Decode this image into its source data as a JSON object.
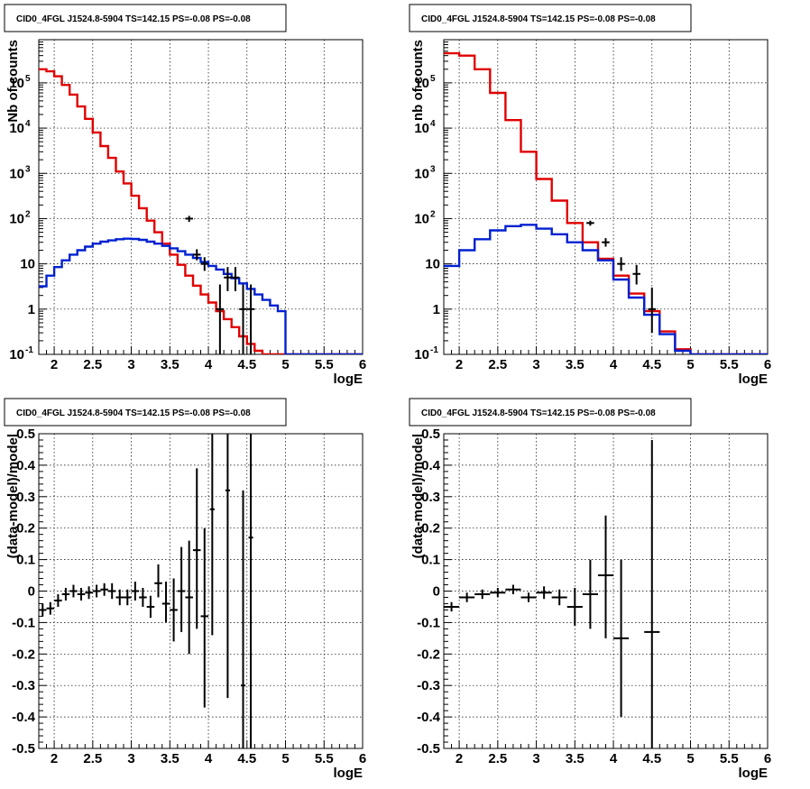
{
  "figure_title": "CID0_4FGL J1524.8-5904 TS=142.15 PS=-0.08 PS=-0.08",
  "chart_data": [
    {
      "id": "panel-top-left",
      "type": "line",
      "title": "CID0_4FGL J1524.8-5904 TS=142.15 PS=-0.08 PS=-0.08",
      "xlabel": "logE",
      "ylabel": "Nb of counts",
      "xlim": [
        1.8,
        6
      ],
      "ylim": [
        0.1,
        900000
      ],
      "yscale": "log",
      "grid": true,
      "xticks": [
        {
          "v": 2,
          "label": "2"
        },
        {
          "v": 2.5,
          "label": "2.5"
        },
        {
          "v": 3,
          "label": "3"
        },
        {
          "v": 3.5,
          "label": "3.5"
        },
        {
          "v": 4,
          "label": "4"
        },
        {
          "v": 4.5,
          "label": "4.5"
        },
        {
          "v": 5,
          "label": "5"
        },
        {
          "v": 5.5,
          "label": "5.5"
        },
        {
          "v": 6,
          "label": "6"
        }
      ],
      "yticks": [
        {
          "v": 0.1,
          "base": "10",
          "exp": "-1"
        },
        {
          "v": 1,
          "base": "1"
        },
        {
          "v": 10,
          "base": "10"
        },
        {
          "v": 100,
          "base": "10",
          "exp": "2"
        },
        {
          "v": 1000,
          "base": "10",
          "exp": "3"
        },
        {
          "v": 10000,
          "base": "10",
          "exp": "4"
        },
        {
          "v": 100000,
          "base": "10",
          "exp": "5"
        }
      ],
      "bin_edges": [
        1.8,
        1.9,
        2.0,
        2.1,
        2.2,
        2.3,
        2.4,
        2.5,
        2.6,
        2.7,
        2.8,
        2.9,
        3.0,
        3.1,
        3.2,
        3.3,
        3.4,
        3.5,
        3.6,
        3.7,
        3.8,
        3.9,
        4.0,
        4.1,
        4.2,
        4.3,
        4.4,
        4.5,
        4.6,
        4.7,
        4.8,
        4.9,
        5.0,
        5.1,
        5.2,
        5.3,
        5.4,
        5.5,
        5.6,
        5.7,
        5.8,
        5.9,
        6.0
      ],
      "series": [
        {
          "kind": "step",
          "color": "#e00000",
          "values": [
            200000,
            180000,
            140000,
            90000,
            55000,
            30000,
            16000,
            8000,
            4000,
            2200,
            1100,
            600,
            320,
            170,
            90,
            50,
            28,
            16,
            9.5,
            5.5,
            3.3,
            2.1,
            1.4,
            0.9,
            0.6,
            0.4,
            0.25,
            0.17,
            0.12,
            0.1,
            0.1,
            0.1,
            0.1,
            0.1,
            0.1,
            0.1,
            0.1,
            0.1,
            0.1,
            0.1,
            0.1,
            0.1
          ]
        },
        {
          "kind": "step",
          "color": "#0020d0",
          "values": [
            3.2,
            5.5,
            8.5,
            12,
            16,
            20,
            24,
            28,
            31,
            33,
            35,
            36,
            35.5,
            34,
            31,
            28,
            25,
            22,
            19,
            16,
            13.5,
            11,
            9,
            7.5,
            6,
            4.8,
            3.7,
            2.8,
            2.1,
            1.6,
            1.2,
            0.9,
            0.1,
            0.1,
            0.1,
            0.1,
            0.1,
            0.1,
            0.1,
            0.1,
            0.1,
            0.1
          ]
        }
      ],
      "points": [
        {
          "x": 3.75,
          "y": 100,
          "ylo": 85,
          "yhi": 115
        },
        {
          "x": 3.85,
          "y": 16,
          "ylo": 12,
          "yhi": 21
        },
        {
          "x": 3.95,
          "y": 10,
          "ylo": 7,
          "yhi": 14
        },
        {
          "x": 4.15,
          "y": 1,
          "ylo": 0.1,
          "yhi": 3.5
        },
        {
          "x": 4.25,
          "y": 5,
          "ylo": 2.5,
          "yhi": 8.5
        },
        {
          "x": 4.35,
          "y": 5,
          "ylo": 2.5,
          "yhi": 8.5
        },
        {
          "x": 4.45,
          "y": 1,
          "ylo": 0.1,
          "yhi": 3.5
        },
        {
          "x": 4.55,
          "y": 1,
          "ylo": 0.1,
          "yhi": 3.5
        }
      ]
    },
    {
      "id": "panel-top-right",
      "type": "line",
      "title": "CID0_4FGL J1524.8-5904 TS=142.15 PS=-0.08 PS=-0.08",
      "xlabel": "logE",
      "ylabel": "nb of counts",
      "xlim": [
        1.8,
        6
      ],
      "ylim": [
        0.1,
        900000
      ],
      "yscale": "log",
      "grid": true,
      "xticks": [
        {
          "v": 2,
          "label": "2"
        },
        {
          "v": 2.5,
          "label": "2.5"
        },
        {
          "v": 3,
          "label": "3"
        },
        {
          "v": 3.5,
          "label": "3.5"
        },
        {
          "v": 4,
          "label": "4"
        },
        {
          "v": 4.5,
          "label": "4.5"
        },
        {
          "v": 5,
          "label": "5"
        },
        {
          "v": 5.5,
          "label": "5.5"
        },
        {
          "v": 6,
          "label": "6"
        }
      ],
      "yticks": [
        {
          "v": 0.1,
          "base": "10",
          "exp": "-1"
        },
        {
          "v": 1,
          "base": "1"
        },
        {
          "v": 10,
          "base": "10"
        },
        {
          "v": 100,
          "base": "10",
          "exp": "2"
        },
        {
          "v": 1000,
          "base": "10",
          "exp": "3"
        },
        {
          "v": 10000,
          "base": "10",
          "exp": "4"
        },
        {
          "v": 100000,
          "base": "10",
          "exp": "5"
        }
      ],
      "bin_edges": [
        1.8,
        2.0,
        2.2,
        2.4,
        2.6,
        2.8,
        3.0,
        3.2,
        3.4,
        3.6,
        3.8,
        4.0,
        4.2,
        4.4,
        4.6,
        4.8,
        5.0,
        5.2,
        5.4,
        5.6,
        5.8,
        6.0
      ],
      "series": [
        {
          "kind": "step",
          "color": "#e00000",
          "values": [
            450000,
            400000,
            200000,
            60000,
            15000,
            3000,
            750,
            250,
            80,
            30,
            13,
            5.5,
            2.2,
            0.9,
            0.32,
            0.13,
            0.1,
            0.1,
            0.1,
            0.1,
            0.1
          ]
        },
        {
          "kind": "step",
          "color": "#0020d0",
          "values": [
            9,
            20,
            35,
            55,
            68,
            73,
            60,
            45,
            30,
            20,
            12,
            4.5,
            1.8,
            0.75,
            0.28,
            0.12,
            0.1,
            0.1,
            0.1,
            0.1,
            0.1
          ]
        }
      ],
      "points": [
        {
          "x": 3.7,
          "y": 80,
          "ylo": 70,
          "yhi": 90
        },
        {
          "x": 3.9,
          "y": 30,
          "ylo": 24,
          "yhi": 37
        },
        {
          "x": 4.1,
          "y": 10,
          "ylo": 7,
          "yhi": 14
        },
        {
          "x": 4.3,
          "y": 6,
          "ylo": 3.5,
          "yhi": 9.5
        },
        {
          "x": 4.5,
          "y": 1,
          "ylo": 0.3,
          "yhi": 3
        }
      ]
    },
    {
      "id": "panel-bottom-left",
      "type": "scatter",
      "title": "CID0_4FGL J1524.8-5904 TS=142.15 PS=-0.08 PS=-0.08",
      "xlabel": "logE",
      "ylabel": "(data-model)/model",
      "xlim": [
        1.8,
        6
      ],
      "ylim": [
        -0.5,
        0.5
      ],
      "yscale": "linear",
      "grid": true,
      "xticks": [
        {
          "v": 2,
          "label": "2"
        },
        {
          "v": 2.5,
          "label": "2.5"
        },
        {
          "v": 3,
          "label": "3"
        },
        {
          "v": 3.5,
          "label": "3.5"
        },
        {
          "v": 4,
          "label": "4"
        },
        {
          "v": 4.5,
          "label": "4.5"
        },
        {
          "v": 5,
          "label": "5"
        },
        {
          "v": 5.5,
          "label": "5.5"
        },
        {
          "v": 6,
          "label": "6"
        }
      ],
      "yticks": [
        {
          "v": -0.5,
          "label": "-0.5"
        },
        {
          "v": -0.4,
          "label": "-0.4"
        },
        {
          "v": -0.3,
          "label": "-0.3"
        },
        {
          "v": -0.2,
          "label": "-0.2"
        },
        {
          "v": -0.1,
          "label": "-0.1"
        },
        {
          "v": 0,
          "label": "0"
        },
        {
          "v": 0.1,
          "label": "0.1"
        },
        {
          "v": 0.2,
          "label": "0.2"
        },
        {
          "v": 0.3,
          "label": "0.3"
        },
        {
          "v": 0.4,
          "label": "0.4"
        },
        {
          "v": 0.5,
          "label": "0.5"
        }
      ],
      "points": [
        {
          "x": 1.85,
          "y": -0.06,
          "ylo": -0.08,
          "yhi": -0.04,
          "hw": 0.05
        },
        {
          "x": 1.95,
          "y": -0.055,
          "ylo": -0.075,
          "yhi": -0.035,
          "hw": 0.05
        },
        {
          "x": 2.05,
          "y": -0.03,
          "ylo": -0.05,
          "yhi": -0.01,
          "hw": 0.05
        },
        {
          "x": 2.15,
          "y": -0.01,
          "ylo": -0.03,
          "yhi": 0.01,
          "hw": 0.05
        },
        {
          "x": 2.25,
          "y": 0.0,
          "ylo": -0.02,
          "yhi": 0.02,
          "hw": 0.05
        },
        {
          "x": 2.35,
          "y": -0.01,
          "ylo": -0.03,
          "yhi": 0.01,
          "hw": 0.05
        },
        {
          "x": 2.45,
          "y": -0.005,
          "ylo": -0.025,
          "yhi": 0.015,
          "hw": 0.05
        },
        {
          "x": 2.55,
          "y": 0.0,
          "ylo": -0.02,
          "yhi": 0.02,
          "hw": 0.05
        },
        {
          "x": 2.65,
          "y": 0.005,
          "ylo": -0.015,
          "yhi": 0.025,
          "hw": 0.05
        },
        {
          "x": 2.75,
          "y": 0.0,
          "ylo": -0.025,
          "yhi": 0.025,
          "hw": 0.05
        },
        {
          "x": 2.85,
          "y": -0.02,
          "ylo": -0.045,
          "yhi": 0.005,
          "hw": 0.05
        },
        {
          "x": 2.95,
          "y": -0.02,
          "ylo": -0.045,
          "yhi": 0.005,
          "hw": 0.05
        },
        {
          "x": 3.05,
          "y": 0.0,
          "ylo": -0.03,
          "yhi": 0.03,
          "hw": 0.05
        },
        {
          "x": 3.15,
          "y": -0.02,
          "ylo": -0.05,
          "yhi": 0.01,
          "hw": 0.05
        },
        {
          "x": 3.25,
          "y": -0.05,
          "ylo": -0.085,
          "yhi": -0.015,
          "hw": 0.05
        },
        {
          "x": 3.35,
          "y": 0.025,
          "ylo": -0.02,
          "yhi": 0.085,
          "hw": 0.05
        },
        {
          "x": 3.45,
          "y": -0.04,
          "ylo": -0.1,
          "yhi": 0.03,
          "hw": 0.05
        },
        {
          "x": 3.55,
          "y": -0.06,
          "ylo": -0.16,
          "yhi": 0.04,
          "hw": 0.05
        },
        {
          "x": 3.65,
          "y": 0.0,
          "ylo": -0.13,
          "yhi": 0.14,
          "hw": 0.05
        },
        {
          "x": 3.75,
          "y": -0.02,
          "ylo": -0.2,
          "yhi": 0.16,
          "hw": 0.05
        },
        {
          "x": 3.85,
          "y": 0.13,
          "ylo": -0.12,
          "yhi": 0.39,
          "hw": 0.05
        },
        {
          "x": 3.95,
          "y": -0.08,
          "ylo": -0.37,
          "yhi": 0.2,
          "hw": 0.05
        },
        {
          "x": 4.05,
          "y": 0.26,
          "ylo": -0.14,
          "yhi": 0.5,
          "hw": 0.03
        },
        {
          "x": 4.25,
          "y": 0.32,
          "ylo": -0.34,
          "yhi": 0.5,
          "hw": 0.03
        },
        {
          "x": 4.45,
          "y": -0.3,
          "ylo": -0.5,
          "yhi": 0.32,
          "hw": 0.03
        },
        {
          "x": 4.55,
          "y": 0.17,
          "ylo": -0.5,
          "yhi": 0.5,
          "hw": 0.03
        }
      ]
    },
    {
      "id": "panel-bottom-right",
      "type": "scatter",
      "title": "CID0_4FGL J1524.8-5904 TS=142.15 PS=-0.08 PS=-0.08",
      "xlabel": "logE",
      "ylabel": "(data-model)/model",
      "xlim": [
        1.8,
        6
      ],
      "ylim": [
        -0.5,
        0.5
      ],
      "yscale": "linear",
      "grid": true,
      "xticks": [
        {
          "v": 2,
          "label": "2"
        },
        {
          "v": 2.5,
          "label": "2.5"
        },
        {
          "v": 3,
          "label": "3"
        },
        {
          "v": 3.5,
          "label": "3.5"
        },
        {
          "v": 4,
          "label": "4"
        },
        {
          "v": 4.5,
          "label": "4.5"
        },
        {
          "v": 5,
          "label": "5"
        },
        {
          "v": 5.5,
          "label": "5.5"
        },
        {
          "v": 6,
          "label": "6"
        }
      ],
      "yticks": [
        {
          "v": -0.5,
          "label": "-0.5"
        },
        {
          "v": -0.4,
          "label": "-0.4"
        },
        {
          "v": -0.3,
          "label": "-0.3"
        },
        {
          "v": -0.2,
          "label": "-0.2"
        },
        {
          "v": -0.1,
          "label": "-0.1"
        },
        {
          "v": 0,
          "label": "0"
        },
        {
          "v": 0.1,
          "label": "0.1"
        },
        {
          "v": 0.2,
          "label": "0.2"
        },
        {
          "v": 0.3,
          "label": "0.3"
        },
        {
          "v": 0.4,
          "label": "0.4"
        },
        {
          "v": 0.5,
          "label": "0.5"
        }
      ],
      "points": [
        {
          "x": 1.9,
          "y": -0.05,
          "ylo": -0.065,
          "yhi": -0.035,
          "hw": 0.1
        },
        {
          "x": 2.1,
          "y": -0.02,
          "ylo": -0.035,
          "yhi": -0.005,
          "hw": 0.1
        },
        {
          "x": 2.3,
          "y": -0.01,
          "ylo": -0.025,
          "yhi": 0.005,
          "hw": 0.1
        },
        {
          "x": 2.5,
          "y": -0.005,
          "ylo": -0.02,
          "yhi": 0.01,
          "hw": 0.1
        },
        {
          "x": 2.7,
          "y": 0.005,
          "ylo": -0.01,
          "yhi": 0.02,
          "hw": 0.1
        },
        {
          "x": 2.9,
          "y": -0.02,
          "ylo": -0.035,
          "yhi": -0.005,
          "hw": 0.1
        },
        {
          "x": 3.1,
          "y": -0.005,
          "ylo": -0.025,
          "yhi": 0.015,
          "hw": 0.1
        },
        {
          "x": 3.3,
          "y": -0.02,
          "ylo": -0.045,
          "yhi": 0.005,
          "hw": 0.1
        },
        {
          "x": 3.5,
          "y": -0.05,
          "ylo": -0.11,
          "yhi": 0.01,
          "hw": 0.1
        },
        {
          "x": 3.7,
          "y": -0.01,
          "ylo": -0.12,
          "yhi": 0.1,
          "hw": 0.1
        },
        {
          "x": 3.9,
          "y": 0.05,
          "ylo": -0.15,
          "yhi": 0.24,
          "hw": 0.1
        },
        {
          "x": 4.1,
          "y": -0.15,
          "ylo": -0.4,
          "yhi": 0.1,
          "hw": 0.1
        },
        {
          "x": 4.5,
          "y": -0.13,
          "ylo": -0.5,
          "yhi": 0.48,
          "hw": 0.1
        }
      ]
    }
  ]
}
